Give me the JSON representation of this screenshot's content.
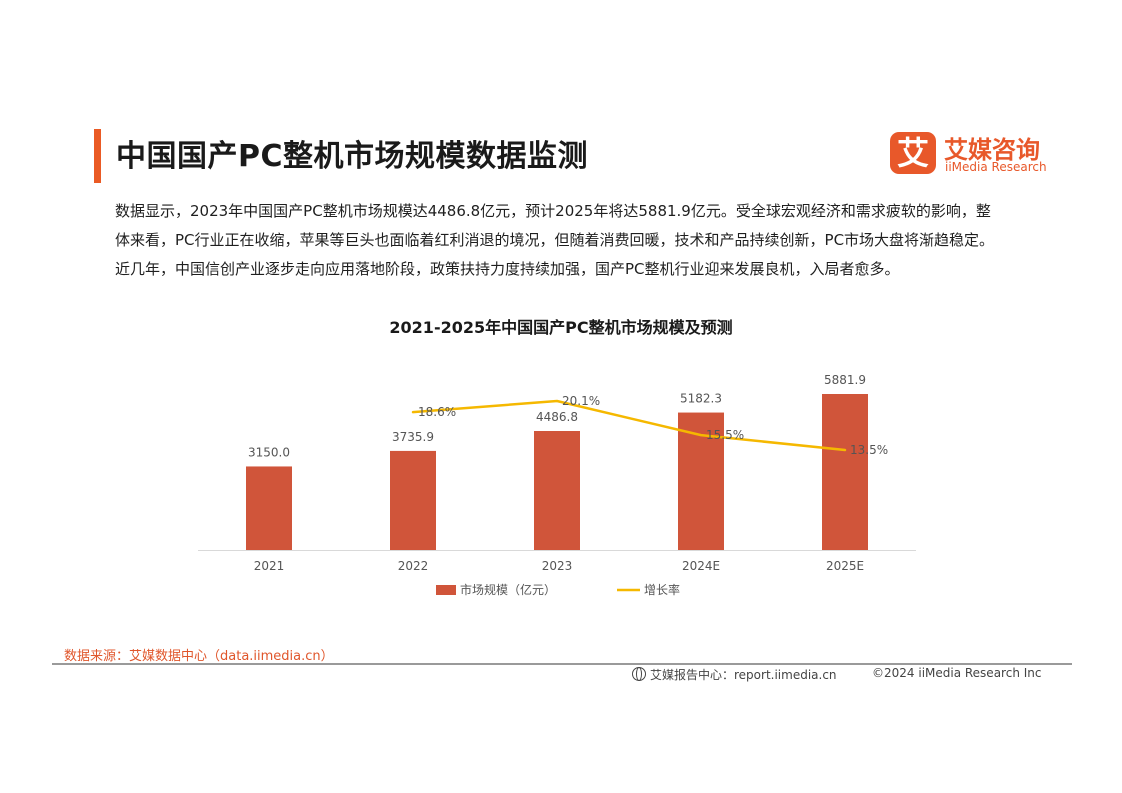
{
  "header": {
    "title": "中国国产PC整机市场规模数据监测",
    "logo_mark": "艾",
    "logo_cn": "艾媒咨询",
    "logo_en": "iiMedia Research"
  },
  "summary": "数据显示，2023年中国国产PC整机市场规模达4486.8亿元，预计2025年将达5881.9亿元。受全球宏观经济和需求疲软的影响，整体来看，PC行业正在收缩，苹果等巨头也面临着红利消退的境况，但随着消费回暖，技术和产品持续创新，PC市场大盘将渐趋稳定。近几年，中国信创产业逐步走向应用落地阶段，政策扶持力度持续加强，国产PC整机行业迎来发展良机，入局者愈多。",
  "colors": {
    "accent": "#ea5a24",
    "bar": "#d0553a",
    "line": "#f5b800"
  },
  "chart_data": {
    "type": "bar",
    "title": "2021-2025年中国国产PC整机市场规模及预测",
    "categories": [
      "2021",
      "2022",
      "2023",
      "2024E",
      "2025E"
    ],
    "series": [
      {
        "name": "市场规模（亿元）",
        "type": "bar",
        "values": [
          3150.0,
          3735.9,
          4486.8,
          5182.3,
          5881.9
        ],
        "labels": [
          "3150.0",
          "3735.9",
          "4486.8",
          "5182.3",
          "5881.9"
        ]
      },
      {
        "name": "增长率",
        "type": "line",
        "values": [
          null,
          18.6,
          20.1,
          15.5,
          13.5
        ],
        "labels": [
          "",
          "18.6%",
          "20.1%",
          "15.5%",
          "13.5%"
        ]
      }
    ],
    "legend": "bottom"
  },
  "footer": {
    "source": "数据来源：艾媒数据中心（data.iimedia.cn）",
    "report_site": "艾媒报告中心：report.iimedia.cn",
    "copyright": "©2024  iiMedia Research  Inc"
  }
}
